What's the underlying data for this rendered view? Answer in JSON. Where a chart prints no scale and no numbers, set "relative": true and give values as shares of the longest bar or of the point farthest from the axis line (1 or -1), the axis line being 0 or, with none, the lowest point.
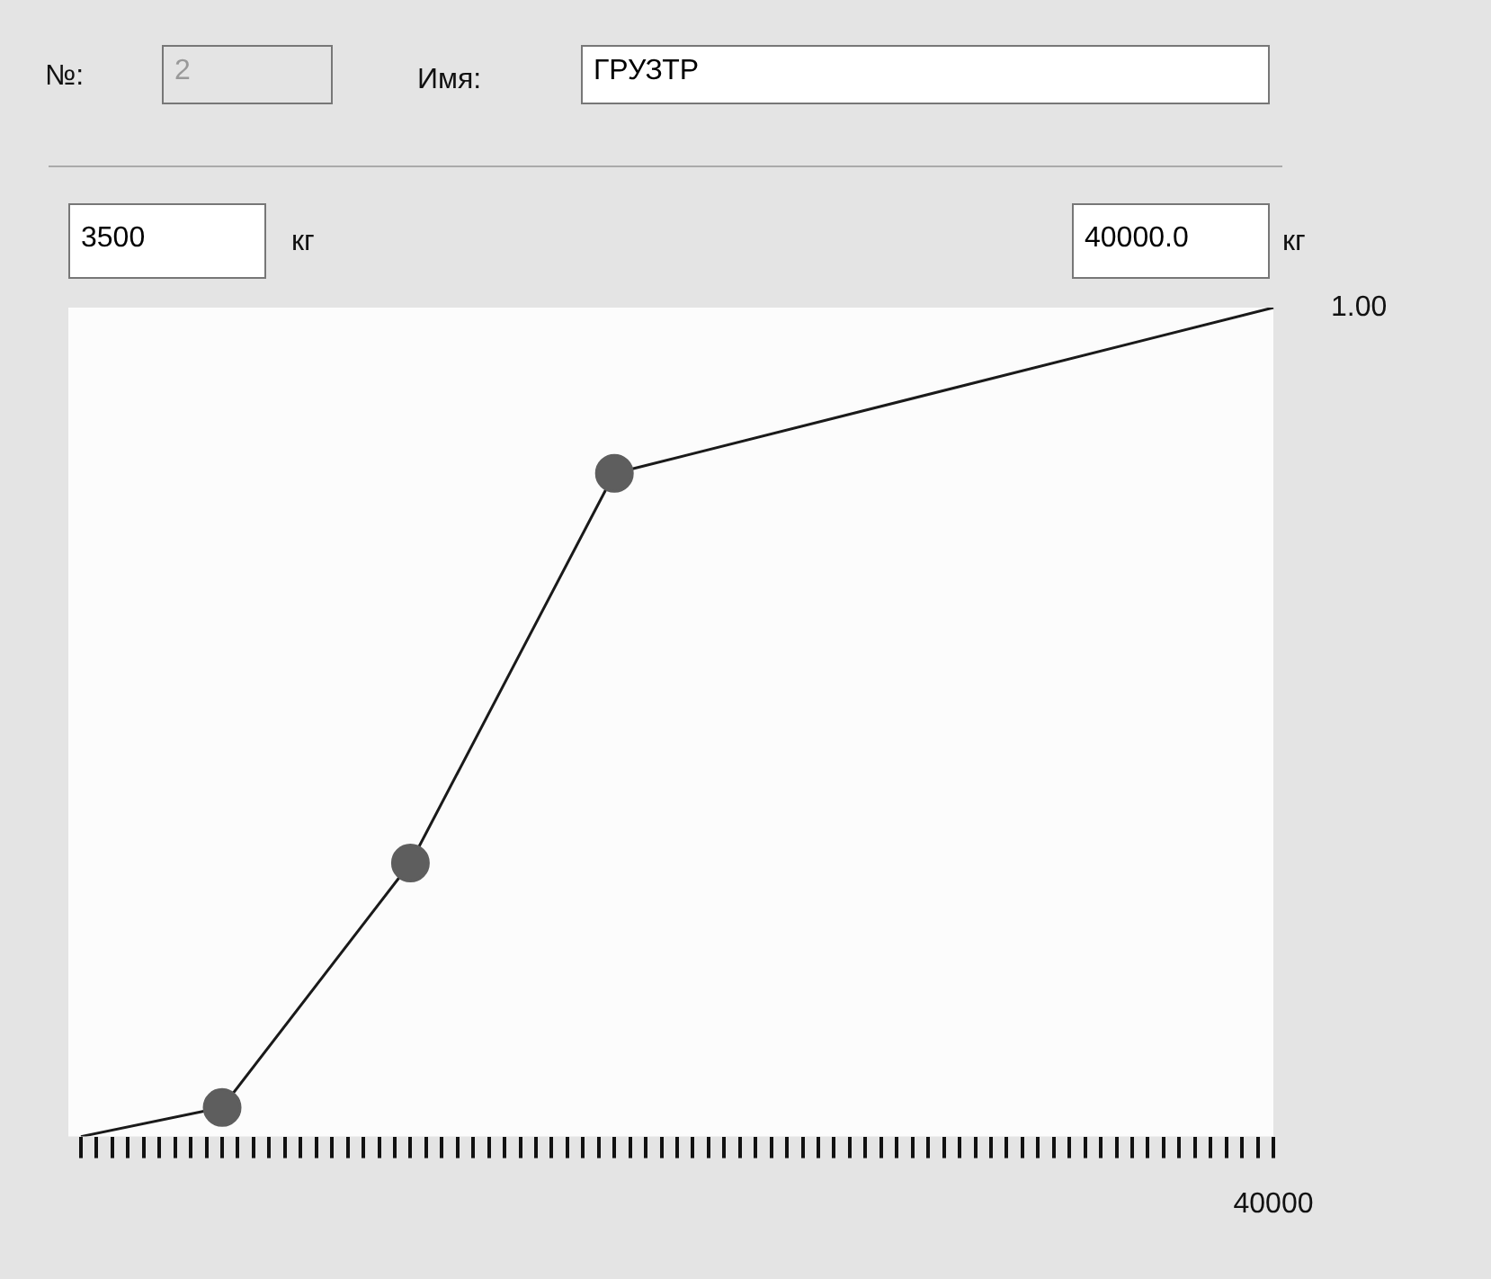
{
  "chart_data": {
    "type": "line",
    "relative": true,
    "categories": [
      null,
      null,
      null,
      null,
      null,
      null,
      null,
      null,
      null,
      null,
      null,
      null,
      null,
      null,
      null,
      null,
      null,
      null,
      null,
      null,
      null,
      null,
      null,
      null,
      null,
      null,
      null,
      null,
      null,
      null,
      null,
      null,
      null,
      null,
      null,
      null,
      null,
      null,
      null,
      null,
      null,
      null,
      null,
      null,
      null,
      null,
      null,
      null,
      null,
      null,
      null,
      null,
      null,
      null,
      null,
      null,
      null,
      null,
      null,
      null,
      null,
      null,
      null,
      null,
      null,
      null,
      null,
      null,
      null,
      null,
      null,
      null,
      null,
      null,
      null,
      null,
      null
    ],
    "marker": "circle",
    "series": [
      {
        "color": "#1a1a1a",
        "values": [
          0,
          null,
          null,
          null,
          null,
          null,
          null,
          null,
          null,
          0.035,
          null,
          null,
          null,
          null,
          null,
          null,
          null,
          null,
          null,
          null,
          null,
          0.33,
          null,
          null,
          null,
          null,
          null,
          null,
          null,
          null,
          null,
          null,
          null,
          null,
          0.8,
          null,
          null,
          null,
          null,
          null,
          null,
          null,
          null,
          null,
          null,
          null,
          null,
          null,
          null,
          null,
          null,
          null,
          null,
          null,
          null,
          null,
          null,
          null,
          null,
          null,
          null,
          null,
          null,
          null,
          null,
          null,
          null,
          null,
          null,
          null,
          null,
          null,
          null,
          null,
          null,
          null,
          1
        ]
      }
    ],
    "grid": false,
    "legend": false,
    "annotations": [
      "№:",
      "2",
      "Имя:",
      "ГРУЗТР",
      "3500",
      "кг",
      "40000.0",
      "кг",
      "1.00",
      "40000"
    ]
  }
}
